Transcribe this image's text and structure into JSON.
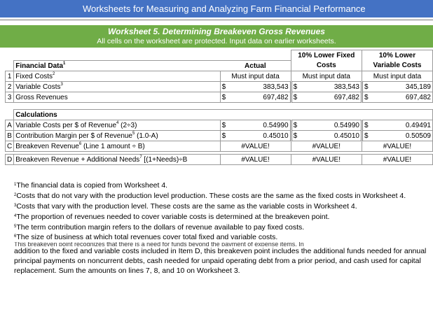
{
  "banner": "Worksheets for Measuring and Analyzing Farm Financial Performance",
  "worksheet": {
    "title": "Worksheet 5. Determining Breakeven Gross Revenues",
    "subtitle": "All cells on the worksheet are protected. Input data on earlier worksheets."
  },
  "headers": {
    "label": "Financial Data",
    "label_sup": "1",
    "actual": "Actual",
    "fixed_l1": "10% Lower Fixed",
    "fixed_l2": "Costs",
    "var_l1": "10% Lower",
    "var_l2": "Variable Costs"
  },
  "rows": [
    {
      "num": "1",
      "label": "Fixed Costs",
      "sup": "2",
      "actual": "Must input data",
      "fixed": "Must input data",
      "variable": "Must input data"
    },
    {
      "num": "2",
      "label": "Variable Costs",
      "sup": "3",
      "cur": "$",
      "actual": "383,543",
      "fixed": "383,543",
      "variable": "345,189"
    },
    {
      "num": "3",
      "label": "Gross Revenues",
      "sup": "",
      "cur": "$",
      "actual": "697,482",
      "fixed": "697,482",
      "variable": "697,482"
    }
  ],
  "calc_header": "Calculations",
  "calc_rows": [
    {
      "num": "A",
      "label_a": "Variable Costs per $ of Revenue",
      "sup": "4",
      "label_b": "  (2÷3)",
      "cur": "$",
      "actual": "0.54990",
      "fixed": "0.54990",
      "variable": "0.49491"
    },
    {
      "num": "B",
      "label_a": "Contribution Margin per $ of Revenue",
      "sup": "5",
      "label_b": " (1.0-A)",
      "cur": "$",
      "actual": "0.45010",
      "fixed": "0.45010",
      "variable": "0.50509"
    },
    {
      "num": "C",
      "label_a": "Breakeven Revenue",
      "sup": "6",
      "label_b": " (Line 1 amount ÷ B)",
      "actual": "#VALUE!",
      "fixed": "#VALUE!",
      "variable": "#VALUE!"
    },
    {
      "num": "D",
      "label_a": "Breakeven Revenue + Additional Needs",
      "sup": "7",
      "label_b": " [(1+Needs)÷B",
      "actual": "#VALUE!",
      "fixed": "#VALUE!",
      "variable": "#VALUE!"
    }
  ],
  "notes": [
    {
      "sup": "1",
      "text": "The financial  data is copied from Worksheet 4."
    },
    {
      "sup": "2",
      "text": "Costs that do not vary with the production level production. These costs are the same as the fixed costs in Worksheet 4."
    },
    {
      "sup": "3",
      "text": "Costs that vary with the production level. These costs are the same as the variable costs in Worksheet 4."
    },
    {
      "sup": "4",
      "text": "The proportion of revenues needed to cover variable costs is determined at the breakeven point."
    },
    {
      "sup": "5",
      "text": "The term contribution margin refers to the dollars of revenue available to pay fixed costs."
    },
    {
      "sup": "6",
      "text": "The size of business at which total revenues cover total fixed and variable costs."
    }
  ],
  "note7_clipped": "This breakeven point recognizes that there is a need for funds beyond the payment of expense items. In",
  "note7_text": "addition to the fixed and variable costs included in Item D, this breakeven point includes the additional funds needed for annual principal payments on noncurrent debts, cash needed for unpaid operating debt from a prior period, and cash used for capital replacement. Sum the amounts on lines 7, 8, and 10 on Worksheet 3."
}
